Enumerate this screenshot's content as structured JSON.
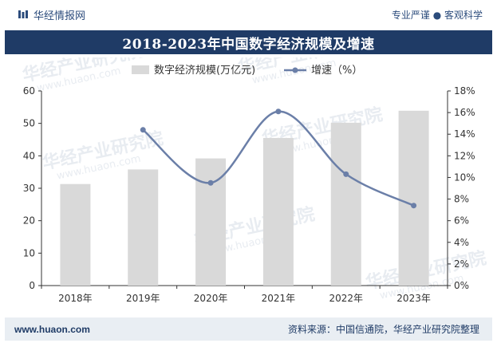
{
  "header": {
    "brand": "华经情报网",
    "tagline": "专业严谨 ● 客观科学"
  },
  "footer": {
    "website": "www.huaon.com",
    "source": "资料来源：中国信通院，华经产业研究院整理"
  },
  "watermark": {
    "name": "华经产业研究院",
    "url": "www.huaon.com"
  },
  "colors": {
    "bar": "#d9d9d9",
    "line": "#6b7fa8",
    "title_bg": "#1f3b66",
    "footer_bg": "#e9eef3"
  },
  "chart_data": {
    "type": "bar",
    "title": "2018-2023年中国数字经济规模及增速",
    "categories": [
      "2018年",
      "2019年",
      "2020年",
      "2021年",
      "2022年",
      "2023年"
    ],
    "series": [
      {
        "name": "数字经济规模(万亿元)",
        "type": "bar",
        "axis": "left",
        "values": [
          31.3,
          35.8,
          39.2,
          45.5,
          50.2,
          53.9
        ]
      },
      {
        "name": "增速（%）",
        "type": "line",
        "axis": "right",
        "values": [
          null,
          14.4,
          9.5,
          16.1,
          10.3,
          7.4
        ]
      }
    ],
    "ylim_left": [
      0,
      60
    ],
    "yticks_left": [
      "0",
      "10",
      "20",
      "30",
      "40",
      "50",
      "60"
    ],
    "ylim_right": [
      0,
      18
    ],
    "yticks_right": [
      "0%",
      "2%",
      "4%",
      "6%",
      "8%",
      "10%",
      "12%",
      "14%",
      "16%",
      "18%"
    ],
    "legend_position": "top-center"
  }
}
